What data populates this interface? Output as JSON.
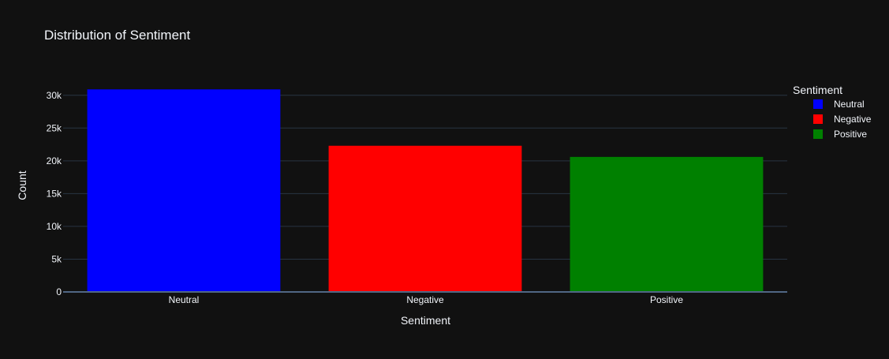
{
  "chart_data": {
    "type": "bar",
    "title": "Distribution of Sentiment",
    "xlabel": "Sentiment",
    "ylabel": "Count",
    "categories": [
      "Neutral",
      "Negative",
      "Positive"
    ],
    "series": [
      {
        "name": "Neutral",
        "category": "Neutral",
        "value": 30900,
        "color": "#0000ff"
      },
      {
        "name": "Negative",
        "category": "Negative",
        "value": 22300,
        "color": "#ff0000"
      },
      {
        "name": "Positive",
        "category": "Positive",
        "value": 20600,
        "color": "#008000"
      }
    ],
    "ylim": [
      0,
      32500
    ],
    "yticks": [
      0,
      5000,
      10000,
      15000,
      20000,
      25000,
      30000
    ],
    "ytick_labels": [
      "0",
      "5k",
      "10k",
      "15k",
      "20k",
      "25k",
      "30k"
    ],
    "grid": true,
    "legend": {
      "title": "Sentiment",
      "placement": "top-right",
      "entries": [
        "Neutral",
        "Negative",
        "Positive"
      ]
    },
    "colors": {
      "background": "#111111",
      "grid": "#283442",
      "axis_line": "#506784",
      "text": "#f2f5fa"
    }
  }
}
